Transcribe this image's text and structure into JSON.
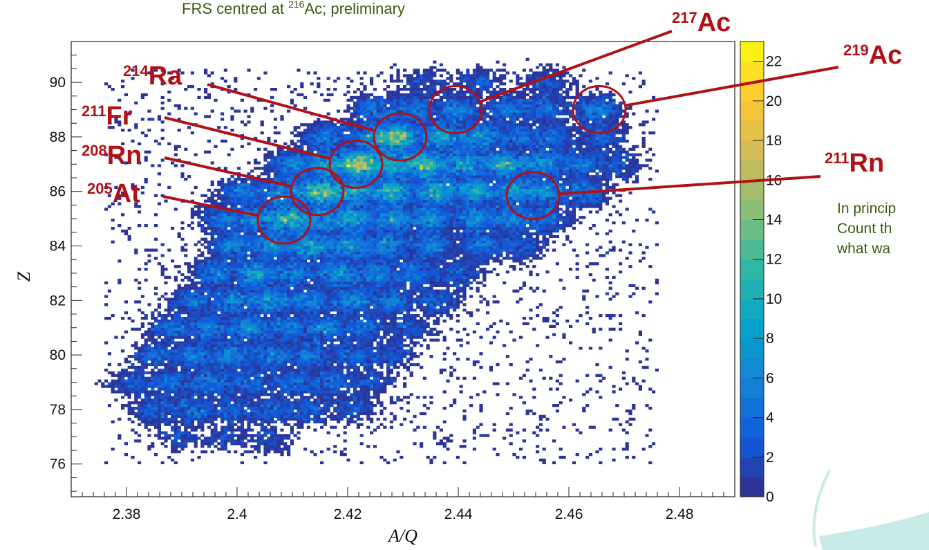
{
  "chart_data": {
    "type": "heatmap",
    "subtitle": {
      "pre": "FRS centred at ",
      "mass": "216",
      "post": "Ac; preliminary"
    },
    "xlabel": "A/Q",
    "ylabel": "Z",
    "xlim": [
      2.37,
      2.49
    ],
    "ylim": [
      74.8,
      91.5
    ],
    "xticks": [
      "2.38",
      "2.4",
      "2.42",
      "2.44",
      "2.46",
      "2.48"
    ],
    "yticks": [
      "76",
      "78",
      "80",
      "82",
      "84",
      "86",
      "88",
      "90"
    ],
    "colorbar": {
      "min": 0,
      "max": 23,
      "ticks": [
        "0",
        "2",
        "4",
        "6",
        "8",
        "10",
        "12",
        "14",
        "16",
        "18",
        "20",
        "22"
      ]
    },
    "colormap": [
      "#352a87",
      "#0f5cdd",
      "#1481d6",
      "#06a4ca",
      "#2eb7a4",
      "#87bf77",
      "#d1bb59",
      "#fec832",
      "#f9fb0e"
    ],
    "annotations": [
      {
        "mass": "214",
        "symbol": "Ra",
        "circle": [
          2.4295,
          88.0
        ]
      },
      {
        "mass": "211",
        "symbol": "Fr",
        "circle": [
          2.4215,
          87.0
        ]
      },
      {
        "mass": "208",
        "symbol": "Rn",
        "circle": [
          2.4145,
          86.0
        ]
      },
      {
        "mass": "205",
        "symbol": "At",
        "circle": [
          2.4085,
          84.95
        ]
      },
      {
        "mass": "217",
        "symbol": "Ac",
        "circle": [
          2.4395,
          89.0
        ]
      },
      {
        "mass": "219",
        "symbol": "Ac",
        "circle": [
          2.4655,
          89.0
        ]
      },
      {
        "mass": "211",
        "symbol": "Rn",
        "circle": [
          2.4535,
          85.85
        ]
      }
    ],
    "clusters": [
      {
        "x": 2.416,
        "y": 88.0,
        "w": 6
      },
      {
        "x": 2.424,
        "y": 88.0,
        "w": 8
      },
      {
        "x": 2.429,
        "y": 88.0,
        "w": 17
      },
      {
        "x": 2.437,
        "y": 88.0,
        "w": 11
      },
      {
        "x": 2.444,
        "y": 88.0,
        "w": 9
      },
      {
        "x": 2.451,
        "y": 88.0,
        "w": 5
      },
      {
        "x": 2.457,
        "y": 88.0,
        "w": 5
      },
      {
        "x": 2.466,
        "y": 88.0,
        "w": 4
      },
      {
        "x": 2.425,
        "y": 89.0,
        "w": 6
      },
      {
        "x": 2.432,
        "y": 89.0,
        "w": 6
      },
      {
        "x": 2.44,
        "y": 89.0,
        "w": 7
      },
      {
        "x": 2.449,
        "y": 89.0,
        "w": 6
      },
      {
        "x": 2.456,
        "y": 89.0,
        "w": 5
      },
      {
        "x": 2.465,
        "y": 89.0,
        "w": 7
      },
      {
        "x": 2.434,
        "y": 90.0,
        "w": 2
      },
      {
        "x": 2.444,
        "y": 90.0,
        "w": 3
      },
      {
        "x": 2.456,
        "y": 90.0,
        "w": 3
      },
      {
        "x": 2.41,
        "y": 87.0,
        "w": 7
      },
      {
        "x": 2.416,
        "y": 87.0,
        "w": 9
      },
      {
        "x": 2.422,
        "y": 87.0,
        "w": 20
      },
      {
        "x": 2.428,
        "y": 87.0,
        "w": 11
      },
      {
        "x": 2.434,
        "y": 87.0,
        "w": 15
      },
      {
        "x": 2.441,
        "y": 87.0,
        "w": 10
      },
      {
        "x": 2.448,
        "y": 87.0,
        "w": 12
      },
      {
        "x": 2.455,
        "y": 87.0,
        "w": 9
      },
      {
        "x": 2.462,
        "y": 87.0,
        "w": 6
      },
      {
        "x": 2.469,
        "y": 87.0,
        "w": 3
      },
      {
        "x": 2.401,
        "y": 86.0,
        "w": 6
      },
      {
        "x": 2.408,
        "y": 86.0,
        "w": 8
      },
      {
        "x": 2.415,
        "y": 86.0,
        "w": 17
      },
      {
        "x": 2.421,
        "y": 86.0,
        "w": 11
      },
      {
        "x": 2.428,
        "y": 86.0,
        "w": 13
      },
      {
        "x": 2.436,
        "y": 86.0,
        "w": 12
      },
      {
        "x": 2.443,
        "y": 86.0,
        "w": 11
      },
      {
        "x": 2.45,
        "y": 86.0,
        "w": 9
      },
      {
        "x": 2.456,
        "y": 86.0,
        "w": 8
      },
      {
        "x": 2.463,
        "y": 86.0,
        "w": 6
      },
      {
        "x": 2.397,
        "y": 85.0,
        "w": 5
      },
      {
        "x": 2.403,
        "y": 85.0,
        "w": 7
      },
      {
        "x": 2.409,
        "y": 85.0,
        "w": 14
      },
      {
        "x": 2.415,
        "y": 85.0,
        "w": 8
      },
      {
        "x": 2.421,
        "y": 85.0,
        "w": 11
      },
      {
        "x": 2.428,
        "y": 85.0,
        "w": 9
      },
      {
        "x": 2.435,
        "y": 85.0,
        "w": 9
      },
      {
        "x": 2.443,
        "y": 85.0,
        "w": 8
      },
      {
        "x": 2.45,
        "y": 85.0,
        "w": 7
      },
      {
        "x": 2.456,
        "y": 85.0,
        "w": 5
      },
      {
        "x": 2.399,
        "y": 84.0,
        "w": 7
      },
      {
        "x": 2.406,
        "y": 84.0,
        "w": 8
      },
      {
        "x": 2.413,
        "y": 84.0,
        "w": 11
      },
      {
        "x": 2.42,
        "y": 84.0,
        "w": 9
      },
      {
        "x": 2.427,
        "y": 84.0,
        "w": 8
      },
      {
        "x": 2.435,
        "y": 84.0,
        "w": 7
      },
      {
        "x": 2.444,
        "y": 84.0,
        "w": 6
      },
      {
        "x": 2.451,
        "y": 84.0,
        "w": 4
      },
      {
        "x": 2.396,
        "y": 83.0,
        "w": 6
      },
      {
        "x": 2.403,
        "y": 83.0,
        "w": 10
      },
      {
        "x": 2.41,
        "y": 83.0,
        "w": 7
      },
      {
        "x": 2.418,
        "y": 83.0,
        "w": 9
      },
      {
        "x": 2.425,
        "y": 83.0,
        "w": 7
      },
      {
        "x": 2.432,
        "y": 83.0,
        "w": 6
      },
      {
        "x": 2.44,
        "y": 83.0,
        "w": 4
      },
      {
        "x": 2.392,
        "y": 82.0,
        "w": 5
      },
      {
        "x": 2.399,
        "y": 82.0,
        "w": 7
      },
      {
        "x": 2.406,
        "y": 82.0,
        "w": 9
      },
      {
        "x": 2.413,
        "y": 82.0,
        "w": 7
      },
      {
        "x": 2.421,
        "y": 82.0,
        "w": 8
      },
      {
        "x": 2.428,
        "y": 82.0,
        "w": 6
      },
      {
        "x": 2.436,
        "y": 82.0,
        "w": 4
      },
      {
        "x": 2.388,
        "y": 81.0,
        "w": 5
      },
      {
        "x": 2.395,
        "y": 81.0,
        "w": 6
      },
      {
        "x": 2.402,
        "y": 81.0,
        "w": 8
      },
      {
        "x": 2.409,
        "y": 81.0,
        "w": 6
      },
      {
        "x": 2.416,
        "y": 81.0,
        "w": 7
      },
      {
        "x": 2.423,
        "y": 81.0,
        "w": 5
      },
      {
        "x": 2.431,
        "y": 81.0,
        "w": 3
      },
      {
        "x": 2.385,
        "y": 80.0,
        "w": 4
      },
      {
        "x": 2.392,
        "y": 80.0,
        "w": 6
      },
      {
        "x": 2.399,
        "y": 80.0,
        "w": 7
      },
      {
        "x": 2.406,
        "y": 80.0,
        "w": 6
      },
      {
        "x": 2.413,
        "y": 80.0,
        "w": 6
      },
      {
        "x": 2.421,
        "y": 80.0,
        "w": 5
      },
      {
        "x": 2.428,
        "y": 80.0,
        "w": 3
      },
      {
        "x": 2.381,
        "y": 79.0,
        "w": 3
      },
      {
        "x": 2.388,
        "y": 79.0,
        "w": 5
      },
      {
        "x": 2.395,
        "y": 79.0,
        "w": 6
      },
      {
        "x": 2.402,
        "y": 79.0,
        "w": 5
      },
      {
        "x": 2.41,
        "y": 79.0,
        "w": 5
      },
      {
        "x": 2.417,
        "y": 79.0,
        "w": 5
      },
      {
        "x": 2.424,
        "y": 79.0,
        "w": 3
      },
      {
        "x": 2.385,
        "y": 78.0,
        "w": 4
      },
      {
        "x": 2.392,
        "y": 78.0,
        "w": 5
      },
      {
        "x": 2.399,
        "y": 78.0,
        "w": 4
      },
      {
        "x": 2.406,
        "y": 78.0,
        "w": 4
      },
      {
        "x": 2.413,
        "y": 78.0,
        "w": 4
      },
      {
        "x": 2.421,
        "y": 78.0,
        "w": 3
      },
      {
        "x": 2.39,
        "y": 77.0,
        "w": 2
      },
      {
        "x": 2.398,
        "y": 77.0,
        "w": 2
      },
      {
        "x": 2.406,
        "y": 77.0,
        "w": 2
      }
    ]
  },
  "note": {
    "lines": [
      "In princip",
      "Count th",
      "what wa"
    ]
  }
}
